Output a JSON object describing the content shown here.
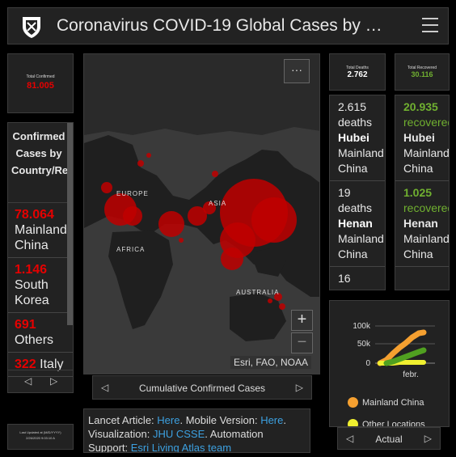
{
  "header": {
    "title": "Coronavirus COVID-19 Global Cases by …"
  },
  "total_confirmed": {
    "label": "Total Confirmed",
    "value": "81.005"
  },
  "country_list": {
    "heading": "Confirmed Cases by Country/Region",
    "items": [
      {
        "num": "78.064",
        "name": " Mainland China"
      },
      {
        "num": "1.146",
        "name": " South Korea"
      },
      {
        "num": "691",
        "name": " Others"
      },
      {
        "num": "322",
        "name": " Italy"
      }
    ]
  },
  "last_updated": {
    "label": "Last Updated at (M/D/YYYY)",
    "value": "2/26/2020 9:03:10 A"
  },
  "map": {
    "attribution": "Esri, FAO, NOAA",
    "more_label": "···",
    "labels": {
      "europe": "EUROPE",
      "asia": "ASIA",
      "africa": "AFRICA",
      "australia": "AUSTRALIA"
    },
    "tab_label": "Cumulative Confirmed Cases"
  },
  "info": {
    "t1": "Lancet Article: ",
    "l1": "Here",
    "t2": ". Mobile Version: ",
    "l2": "Here",
    "t3": ". Visualization: ",
    "l3": "JHU CSSE",
    "t4": ". Automation Support: ",
    "l4": "Esri Living Atlas team"
  },
  "total_deaths": {
    "label": "Total Deaths",
    "value": "2.762"
  },
  "deaths_list": [
    {
      "num": "2.615",
      "unit": " deaths",
      "place": "Hubei",
      "region": "Mainland China"
    },
    {
      "num": "19",
      "unit": " deaths",
      "place": "Henan",
      "region": "Mainland China"
    },
    {
      "num": "16",
      "unit": " deaths",
      "place": "",
      "region": ""
    }
  ],
  "total_recovered": {
    "label": "Total Recovered",
    "value": "30.116"
  },
  "recovered_list": [
    {
      "num": "20.935",
      "unit": " recovered",
      "place": "Hubei",
      "region": "Mainland China"
    },
    {
      "num": "1.025",
      "unit": " recovered",
      "place": "Henan",
      "region": "Mainland China"
    }
  ],
  "chart": {
    "tab_label": "Actual",
    "y_ticks": [
      "100k",
      "50k",
      "0"
    ],
    "x_tick": "febr.",
    "legend": [
      {
        "name": "Mainland China",
        "color": "#f5a030"
      },
      {
        "name": "Other Locations",
        "color": "#f0f030"
      }
    ]
  },
  "colors": {
    "confirmed": "#e60000",
    "recovered": "#70b030",
    "link": "#3ca0e0"
  }
}
